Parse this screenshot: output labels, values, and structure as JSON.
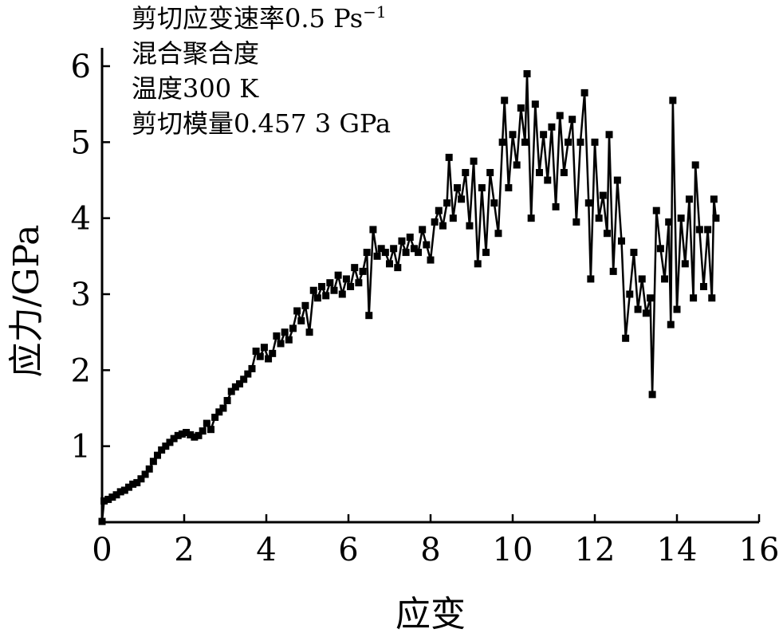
{
  "chart_data": {
    "type": "line",
    "markers": "square",
    "xlabel": "应变",
    "ylabel": "应力/GPa",
    "xlim": [
      0,
      16
    ],
    "ylim": [
      0,
      6
    ],
    "xticks": [
      "0",
      "2",
      "4",
      "6",
      "8",
      "10",
      "12",
      "14",
      "16"
    ],
    "yticks": [
      "1",
      "2",
      "3",
      "4",
      "5",
      "6"
    ],
    "grid": false,
    "legend": "none",
    "line_color": "#000000",
    "annotations": [
      {
        "prefix": "剪切应变速率0.5 Ps",
        "sup": "−1"
      },
      {
        "prefix": "混合聚合度",
        "sup": ""
      },
      {
        "prefix": "温度300 K",
        "sup": ""
      },
      {
        "prefix": "剪切模量0.457 3 GPa",
        "sup": ""
      }
    ],
    "series": [
      {
        "points": [
          [
            0,
            0.01
          ],
          [
            0.05,
            0.28
          ],
          [
            0.15,
            0.3
          ],
          [
            0.25,
            0.33
          ],
          [
            0.35,
            0.36
          ],
          [
            0.45,
            0.4
          ],
          [
            0.55,
            0.42
          ],
          [
            0.65,
            0.46
          ],
          [
            0.75,
            0.5
          ],
          [
            0.85,
            0.52
          ],
          [
            0.95,
            0.57
          ],
          [
            1.05,
            0.63
          ],
          [
            1.15,
            0.7
          ],
          [
            1.25,
            0.8
          ],
          [
            1.35,
            0.88
          ],
          [
            1.45,
            0.95
          ],
          [
            1.55,
            1.0
          ],
          [
            1.65,
            1.05
          ],
          [
            1.75,
            1.1
          ],
          [
            1.85,
            1.14
          ],
          [
            1.95,
            1.16
          ],
          [
            2.05,
            1.18
          ],
          [
            2.15,
            1.15
          ],
          [
            2.25,
            1.12
          ],
          [
            2.35,
            1.14
          ],
          [
            2.45,
            1.2
          ],
          [
            2.55,
            1.3
          ],
          [
            2.65,
            1.22
          ],
          [
            2.75,
            1.38
          ],
          [
            2.85,
            1.45
          ],
          [
            2.95,
            1.5
          ],
          [
            3.05,
            1.6
          ],
          [
            3.15,
            1.72
          ],
          [
            3.25,
            1.78
          ],
          [
            3.35,
            1.82
          ],
          [
            3.45,
            1.88
          ],
          [
            3.55,
            1.95
          ],
          [
            3.65,
            2.02
          ],
          [
            3.75,
            2.25
          ],
          [
            3.85,
            2.18
          ],
          [
            3.95,
            2.3
          ],
          [
            4.05,
            2.15
          ],
          [
            4.15,
            2.22
          ],
          [
            4.25,
            2.45
          ],
          [
            4.35,
            2.35
          ],
          [
            4.45,
            2.5
          ],
          [
            4.55,
            2.4
          ],
          [
            4.65,
            2.55
          ],
          [
            4.75,
            2.78
          ],
          [
            4.85,
            2.65
          ],
          [
            4.95,
            2.85
          ],
          [
            5.05,
            2.5
          ],
          [
            5.15,
            3.05
          ],
          [
            5.25,
            2.95
          ],
          [
            5.35,
            3.1
          ],
          [
            5.45,
            2.98
          ],
          [
            5.55,
            3.15
          ],
          [
            5.65,
            3.05
          ],
          [
            5.75,
            3.25
          ],
          [
            5.85,
            3.0
          ],
          [
            5.95,
            3.2
          ],
          [
            6.05,
            3.1
          ],
          [
            6.15,
            3.35
          ],
          [
            6.25,
            3.15
          ],
          [
            6.35,
            3.3
          ],
          [
            6.45,
            3.55
          ],
          [
            6.5,
            2.72
          ],
          [
            6.6,
            3.85
          ],
          [
            6.7,
            3.5
          ],
          [
            6.8,
            3.6
          ],
          [
            6.9,
            3.55
          ],
          [
            7.0,
            3.4
          ],
          [
            7.1,
            3.6
          ],
          [
            7.2,
            3.35
          ],
          [
            7.3,
            3.7
          ],
          [
            7.4,
            3.55
          ],
          [
            7.5,
            3.75
          ],
          [
            7.6,
            3.6
          ],
          [
            7.7,
            3.55
          ],
          [
            7.8,
            3.85
          ],
          [
            7.9,
            3.65
          ],
          [
            8.0,
            3.45
          ],
          [
            8.1,
            3.95
          ],
          [
            8.2,
            4.1
          ],
          [
            8.3,
            3.9
          ],
          [
            8.4,
            4.2
          ],
          [
            8.45,
            4.8
          ],
          [
            8.55,
            4.0
          ],
          [
            8.65,
            4.4
          ],
          [
            8.75,
            4.25
          ],
          [
            8.85,
            4.6
          ],
          [
            8.95,
            3.9
          ],
          [
            9.05,
            4.75
          ],
          [
            9.15,
            3.4
          ],
          [
            9.25,
            4.4
          ],
          [
            9.35,
            3.55
          ],
          [
            9.45,
            4.6
          ],
          [
            9.55,
            4.2
          ],
          [
            9.65,
            3.8
          ],
          [
            9.75,
            5.0
          ],
          [
            9.8,
            5.55
          ],
          [
            9.9,
            4.4
          ],
          [
            10.0,
            5.1
          ],
          [
            10.1,
            4.7
          ],
          [
            10.2,
            5.45
          ],
          [
            10.3,
            5.0
          ],
          [
            10.35,
            5.9
          ],
          [
            10.45,
            4.0
          ],
          [
            10.55,
            5.5
          ],
          [
            10.65,
            4.6
          ],
          [
            10.75,
            5.1
          ],
          [
            10.85,
            4.5
          ],
          [
            10.95,
            5.2
          ],
          [
            11.05,
            4.15
          ],
          [
            11.15,
            5.35
          ],
          [
            11.25,
            4.6
          ],
          [
            11.35,
            5.0
          ],
          [
            11.45,
            5.3
          ],
          [
            11.55,
            3.95
          ],
          [
            11.65,
            5.0
          ],
          [
            11.75,
            5.65
          ],
          [
            11.85,
            4.2
          ],
          [
            11.9,
            3.2
          ],
          [
            12.0,
            5.0
          ],
          [
            12.1,
            4.0
          ],
          [
            12.2,
            4.3
          ],
          [
            12.3,
            3.8
          ],
          [
            12.35,
            5.1
          ],
          [
            12.45,
            3.3
          ],
          [
            12.55,
            4.5
          ],
          [
            12.65,
            3.7
          ],
          [
            12.75,
            2.42
          ],
          [
            12.85,
            3.0
          ],
          [
            12.95,
            3.55
          ],
          [
            13.05,
            2.8
          ],
          [
            13.15,
            3.2
          ],
          [
            13.25,
            2.75
          ],
          [
            13.35,
            2.95
          ],
          [
            13.4,
            1.68
          ],
          [
            13.5,
            4.1
          ],
          [
            13.6,
            3.6
          ],
          [
            13.7,
            3.2
          ],
          [
            13.8,
            3.95
          ],
          [
            13.85,
            2.6
          ],
          [
            13.9,
            5.55
          ],
          [
            14.0,
            2.8
          ],
          [
            14.1,
            4.0
          ],
          [
            14.2,
            3.4
          ],
          [
            14.3,
            4.25
          ],
          [
            14.4,
            2.95
          ],
          [
            14.45,
            4.7
          ],
          [
            14.55,
            3.85
          ],
          [
            14.65,
            3.1
          ],
          [
            14.75,
            3.85
          ],
          [
            14.85,
            2.95
          ],
          [
            14.9,
            4.25
          ],
          [
            14.95,
            4.0
          ]
        ]
      }
    ]
  }
}
